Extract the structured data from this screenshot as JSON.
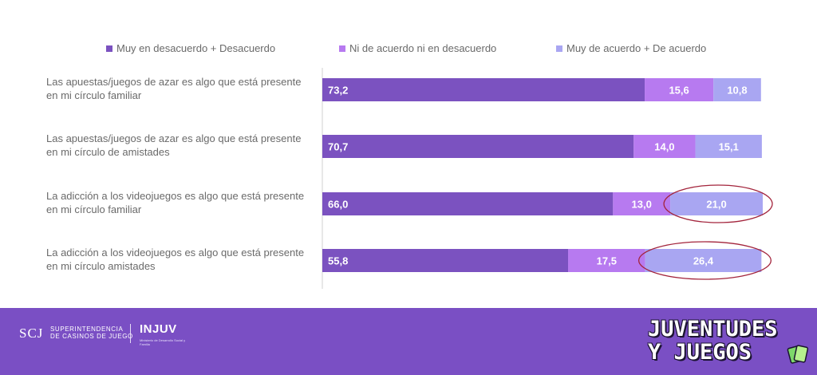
{
  "chart_data": {
    "type": "bar",
    "stacked": true,
    "orientation": "horizontal",
    "categories": [
      [
        "Las apuestas/juegos de azar es algo que está presente",
        "en mi círculo familiar"
      ],
      [
        "Las apuestas/juegos de azar es algo que está presente",
        "en mi círculo de amistades"
      ],
      [
        "La adicción a los videojuegos es algo que está presente",
        "en mi círculo familiar"
      ],
      [
        "La adicción a los videojuegos es algo que está presente",
        "en mi círculo amistades"
      ]
    ],
    "series": [
      {
        "name": "Muy en desacuerdo + Desacuerdo",
        "color": "#7b52c0",
        "values": [
          73.2,
          70.7,
          66.0,
          55.8
        ],
        "labels": [
          "73,2",
          "70,7",
          "66,0",
          "55,8"
        ]
      },
      {
        "name": "Ni de acuerdo ni en desacuerdo",
        "color": "#b77af0",
        "values": [
          15.6,
          14.0,
          13.0,
          17.5
        ],
        "labels": [
          "15,6",
          "14,0",
          "13,0",
          "17,5"
        ]
      },
      {
        "name": "Muy de acuerdo + De acuerdo",
        "color": "#a9a6f2",
        "values": [
          10.8,
          15.1,
          21.0,
          26.4
        ],
        "labels": [
          "10,8",
          "15,1",
          "21,0",
          "26,4"
        ]
      }
    ],
    "highlighted": [
      [
        2,
        2
      ],
      [
        3,
        2
      ]
    ],
    "highlight_color": "#a3243c",
    "legend_position": "top"
  },
  "footer": {
    "scj": "SCJ",
    "superintendencia": [
      "SUPERINTENDENCIA",
      "DE CASINOS DE JUEGO"
    ],
    "injuv": "INJUV",
    "injuv_sub": "Ministerio de Desarrollo Social y Familia",
    "game_logo": [
      "JUVENTUDES",
      "Y JUEGOS"
    ]
  },
  "colors": {
    "footer_bg": "#7a4fc4",
    "label_text": "#6a6a6a"
  }
}
